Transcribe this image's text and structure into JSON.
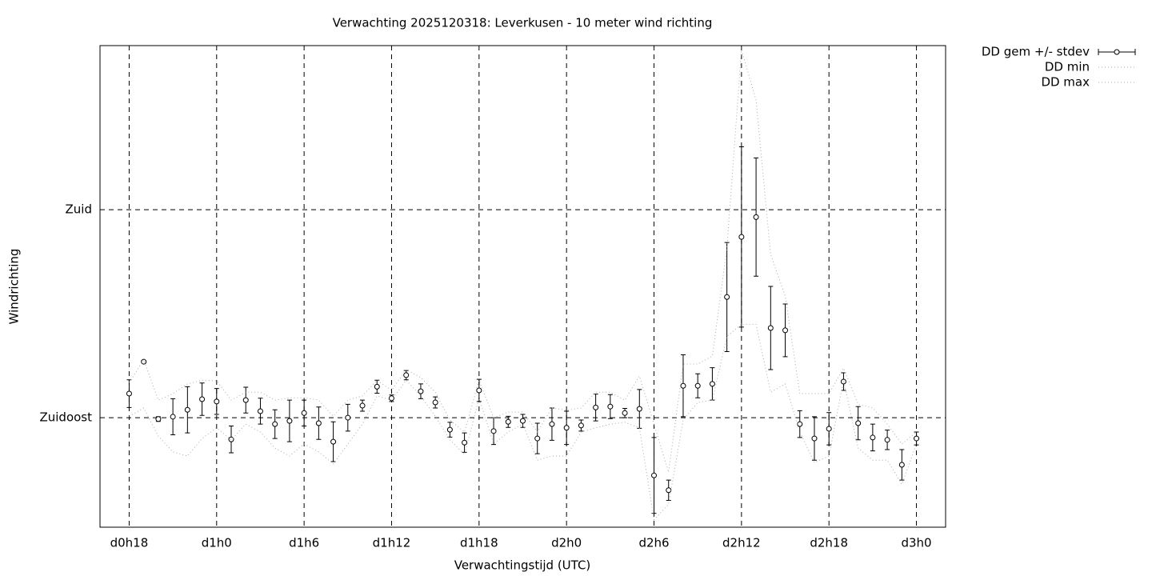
{
  "chart_data": {
    "type": "errorbar",
    "title": "Verwachting 2025120318: Leverkusen - 10 meter wind richting",
    "x_label": "Verwachtingstijd (UTC)",
    "y_label": "Windrichting",
    "x": [
      18,
      19,
      20,
      21,
      22,
      23,
      24,
      25,
      26,
      27,
      28,
      29,
      30,
      31,
      32,
      33,
      34,
      35,
      36,
      37,
      38,
      39,
      40,
      41,
      42,
      43,
      44,
      45,
      46,
      47,
      48,
      49,
      50,
      51,
      52,
      53,
      54,
      55,
      56,
      57,
      58,
      59,
      60,
      61,
      62,
      63,
      64,
      65,
      66,
      67,
      68,
      69,
      70,
      71,
      72
    ],
    "series": [
      {
        "name": "DD gem +/- stdev",
        "color": "#000000",
        "values": [
          140.2,
          147.1,
          134.7,
          135.2,
          136.7,
          139.0,
          138.5,
          130.3,
          138.8,
          136.4,
          133.6,
          134.3,
          136.0,
          133.8,
          129.8,
          135.0,
          137.6,
          141.7,
          139.2,
          144.2,
          140.7,
          138.3,
          132.4,
          129.6,
          140.9,
          132.1,
          134.1,
          134.3,
          130.5,
          133.6,
          132.8,
          133.3,
          137.2,
          137.4,
          136.0,
          136.9,
          122.5,
          119.3,
          141.9,
          141.9,
          142.3,
          161.1,
          174.1,
          178.4,
          154.4,
          153.9,
          133.6,
          130.5,
          132.6,
          142.8,
          133.8,
          130.7,
          130.2,
          124.8,
          130.5
        ],
        "errors": [
          3.0,
          0.3,
          0.5,
          3.9,
          5.0,
          3.5,
          2.8,
          2.9,
          2.8,
          2.8,
          3.1,
          4.5,
          2.8,
          3.5,
          4.3,
          2.9,
          1.2,
          1.4,
          0.7,
          1.0,
          1.6,
          1.2,
          1.6,
          2.1,
          2.4,
          2.9,
          1.2,
          1.4,
          3.3,
          3.5,
          3.6,
          1.2,
          2.9,
          2.6,
          1.0,
          4.2,
          8.2,
          2.2,
          6.7,
          2.6,
          3.5,
          11.8,
          19.5,
          12.8,
          9.0,
          5.7,
          2.9,
          4.7,
          3.5,
          1.9,
          3.6,
          2.9,
          2.1,
          3.3,
          1.4
        ]
      },
      {
        "name": "DD min",
        "color": "#aaaaaa",
        "values": [
          135.3,
          137.1,
          131.0,
          127.6,
          126.7,
          130.5,
          132.8,
          130.2,
          133.6,
          131.9,
          128.4,
          126.7,
          129.3,
          127.6,
          125.0,
          129.3,
          133.6,
          139.7,
          138.8,
          143.1,
          139.7,
          135.3,
          130.2,
          127.0,
          139.2,
          129.3,
          131.9,
          133.6,
          125.8,
          126.7,
          126.7,
          131.9,
          132.8,
          133.6,
          134.0,
          132.8,
          112.9,
          116.3,
          134.5,
          138.3,
          138.8,
          152.6,
          155.2,
          155.2,
          140.5,
          142.3,
          131.9,
          125.3,
          126.7,
          143.1,
          128.4,
          125.8,
          125.8,
          120.6,
          129.3
        ]
      },
      {
        "name": "DD max",
        "color": "#aaaaaa",
        "values": [
          142.6,
          147.5,
          138.8,
          140.2,
          142.3,
          143.1,
          143.0,
          138.8,
          140.5,
          140.5,
          138.8,
          139.3,
          139.3,
          138.8,
          135.3,
          138.8,
          139.7,
          143.1,
          140.9,
          145.4,
          143.7,
          140.5,
          134.5,
          131.9,
          143.1,
          135.0,
          136.2,
          136.2,
          131.9,
          137.1,
          136.6,
          137.1,
          140.5,
          140.5,
          138.8,
          144.0,
          133.6,
          123.2,
          146.6,
          146.6,
          148.3,
          171.7,
          214.6,
          203.7,
          170.3,
          161.3,
          140.2,
          140.2,
          140.2,
          145.7,
          137.9,
          137.1,
          133.6,
          129.3,
          131.9
        ]
      }
    ],
    "xlim": [
      16,
      74
    ],
    "ylim": [
      111.3,
      215.5
    ],
    "xticks": [
      {
        "value": 18,
        "label": "d0h18"
      },
      {
        "value": 24,
        "label": "d1h0"
      },
      {
        "value": 30,
        "label": "d1h6"
      },
      {
        "value": 36,
        "label": "d1h12"
      },
      {
        "value": 42,
        "label": "d1h18"
      },
      {
        "value": 48,
        "label": "d2h0"
      },
      {
        "value": 54,
        "label": "d2h6"
      },
      {
        "value": 60,
        "label": "d2h12"
      },
      {
        "value": 66,
        "label": "d2h18"
      },
      {
        "value": 72,
        "label": "d3h0"
      }
    ],
    "yticks": [
      {
        "value": 135,
        "label": "Zuidoost"
      },
      {
        "value": 180,
        "label": "Zuid"
      }
    ],
    "grid": true,
    "legend": "outside-top-right"
  }
}
